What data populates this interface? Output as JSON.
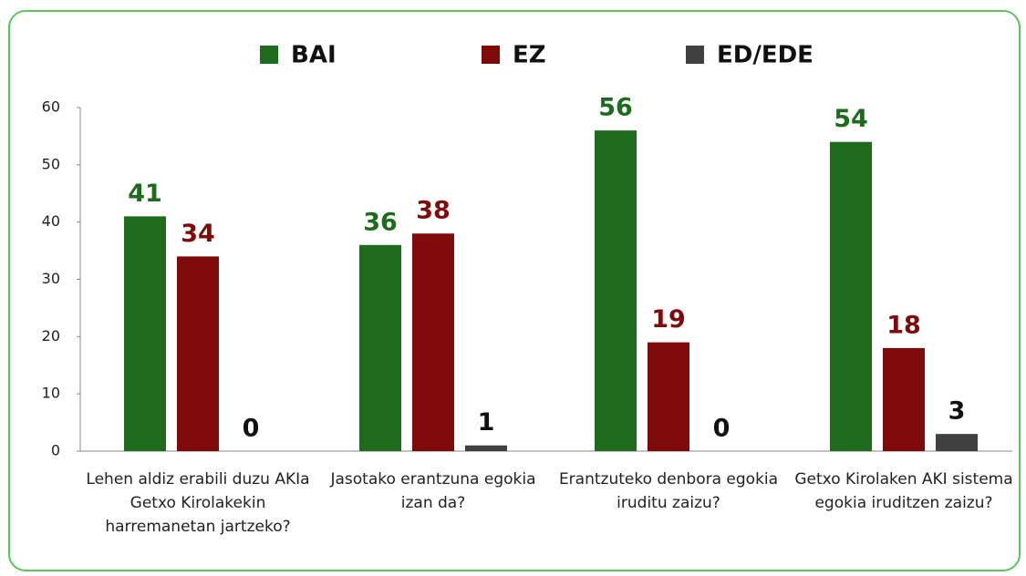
{
  "chart_data": {
    "type": "bar",
    "categories": [
      "Lehen aldiz erabili duzu AKIa Getxo Kirolakekin harremanetan jartzeko?",
      "Jasotako erantzuna egokia izan da?",
      "Erantzuteko denbora egokia iruditu zaizu?",
      "Getxo Kirolaken AKI sistema egokia iruditzen zaizu?"
    ],
    "series": [
      {
        "name": "BAI",
        "color": "#1e6b1e",
        "values": [
          41,
          36,
          56,
          54
        ]
      },
      {
        "name": "EZ",
        "color": "#7f0a0a",
        "values": [
          34,
          38,
          19,
          18
        ]
      },
      {
        "name": "ED/EDE",
        "color": "#404040",
        "values": [
          0,
          1,
          0,
          3
        ]
      }
    ],
    "ylim": [
      0,
      60
    ],
    "yticks": [
      0,
      10,
      20,
      30,
      40,
      50,
      60
    ],
    "grid": false,
    "legend": "top"
  }
}
